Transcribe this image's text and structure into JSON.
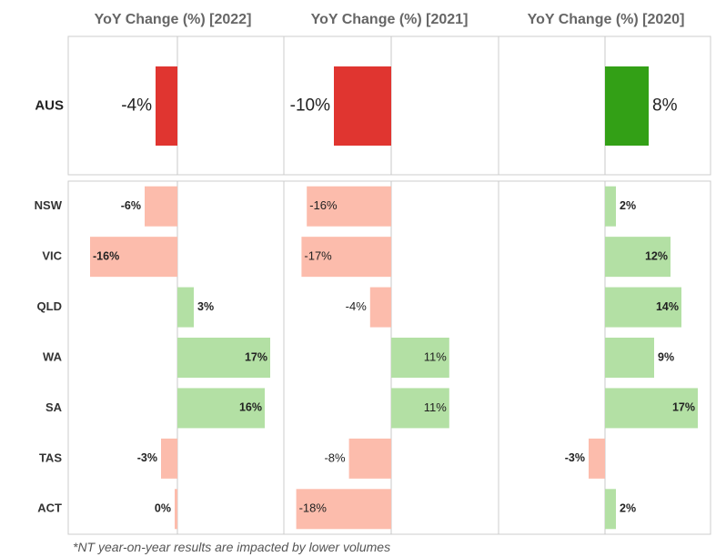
{
  "chart_data": {
    "type": "bar",
    "orientation": "horizontal",
    "panels": [
      {
        "title": "YoY Change (%) [2022]",
        "zero": 195,
        "px_per_unit": 6.0,
        "label_weight": "bold"
      },
      {
        "title": "YoY Change (%) [2021]",
        "zero": 430,
        "px_per_unit": 5.8,
        "label_weight": "normal"
      },
      {
        "title": "YoY Change (%)  [2020]",
        "zero": 665,
        "px_per_unit": 6.0,
        "label_weight": "bold"
      }
    ],
    "aus": {
      "label": "AUS",
      "values": [
        -4,
        -10,
        8
      ],
      "value_labels": [
        "-4%",
        "-10%",
        "8%"
      ]
    },
    "states": [
      {
        "label": "NSW",
        "values": [
          -6,
          -16,
          2
        ],
        "value_labels": [
          "-6%",
          "-16%",
          "2%"
        ]
      },
      {
        "label": "VIC",
        "values": [
          -16,
          -17,
          12
        ],
        "value_labels": [
          "-16%",
          "-17%",
          "12%"
        ]
      },
      {
        "label": "QLD",
        "values": [
          3,
          -4,
          14
        ],
        "value_labels": [
          "3%",
          "-4%",
          "14%"
        ]
      },
      {
        "label": "WA",
        "values": [
          17,
          11,
          9
        ],
        "value_labels": [
          "17%",
          "11%",
          "9%"
        ]
      },
      {
        "label": "SA",
        "values": [
          16,
          11,
          17
        ],
        "value_labels": [
          "16%",
          "11%",
          "17%"
        ]
      },
      {
        "label": "TAS",
        "values": [
          -3,
          -8,
          -3
        ],
        "value_labels": [
          "-3%",
          "-8%",
          "-3%"
        ]
      },
      {
        "label": "ACT",
        "values": [
          0,
          -18,
          2
        ],
        "value_labels": [
          "0%",
          "-18%",
          "2%"
        ]
      }
    ],
    "colors": {
      "aus_negative": "#e03530",
      "aus_positive": "#33a016",
      "negative": "#fcbcac",
      "positive": "#b3e0a4",
      "axis": "#c8c8c8",
      "frame": "#cccccc"
    }
  },
  "footnote": "*NT year-on-year results are impacted by lower volumes"
}
